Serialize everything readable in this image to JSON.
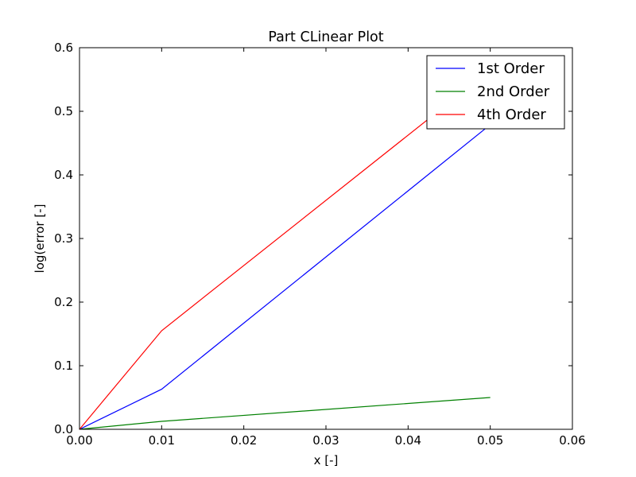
{
  "chart_data": {
    "type": "line",
    "title": "Part CLinear Plot",
    "xlabel": "x [-]",
    "ylabel": "log(error [-]",
    "xlim": [
      0.0,
      0.06
    ],
    "ylim": [
      0.0,
      0.6
    ],
    "xticks": [
      "0.00",
      "0.01",
      "0.02",
      "0.03",
      "0.04",
      "0.05",
      "0.06"
    ],
    "yticks": [
      "0.0",
      "0.1",
      "0.2",
      "0.3",
      "0.4",
      "0.5",
      "0.6"
    ],
    "grid": false,
    "legend_position": "top-right",
    "series": [
      {
        "name": "1st Order",
        "color": "#0000ff",
        "x": [
          0.0,
          0.01,
          0.05
        ],
        "y": [
          0.0,
          0.063,
          0.479
        ]
      },
      {
        "name": "2nd Order",
        "color": "#008000",
        "x": [
          0.0,
          0.01,
          0.05
        ],
        "y": [
          0.0,
          0.0125,
          0.05
        ]
      },
      {
        "name": "4th Order",
        "color": "#ff0000",
        "x": [
          0.0,
          0.01,
          0.05
        ],
        "y": [
          0.0,
          0.155,
          0.565
        ]
      }
    ]
  }
}
